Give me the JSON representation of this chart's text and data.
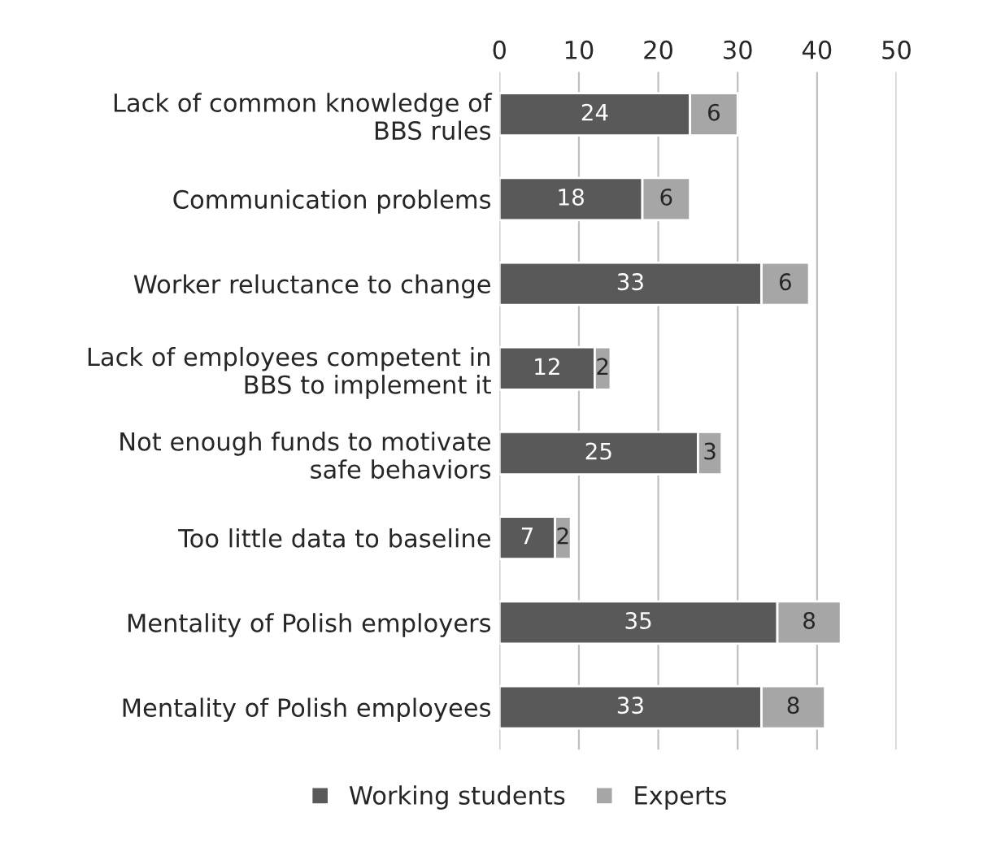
{
  "chart_data": {
    "type": "bar",
    "orientation": "horizontal",
    "stacked": true,
    "categories": [
      "Lack of common knowledge of\nBBS rules",
      "Communication problems",
      "Worker reluctance to change",
      "Lack of employees competent in\nBBS to implement it",
      "Not enough funds to motivate\nsafe behaviors",
      "Too little data to baseline",
      "Mentality of Polish employers",
      "Mentality of Polish employees"
    ],
    "series": [
      {
        "name": "Working students",
        "color": "#595959",
        "values": [
          24,
          18,
          33,
          12,
          25,
          7,
          35,
          33
        ]
      },
      {
        "name": "Experts",
        "color": "#a6a6a6",
        "values": [
          6,
          6,
          6,
          2,
          3,
          2,
          8,
          8
        ]
      }
    ],
    "xlim": [
      0,
      50
    ],
    "xticks": [
      0,
      10,
      20,
      30,
      40,
      50
    ],
    "grid": "x",
    "legend": "bottom",
    "data_labels": true
  }
}
